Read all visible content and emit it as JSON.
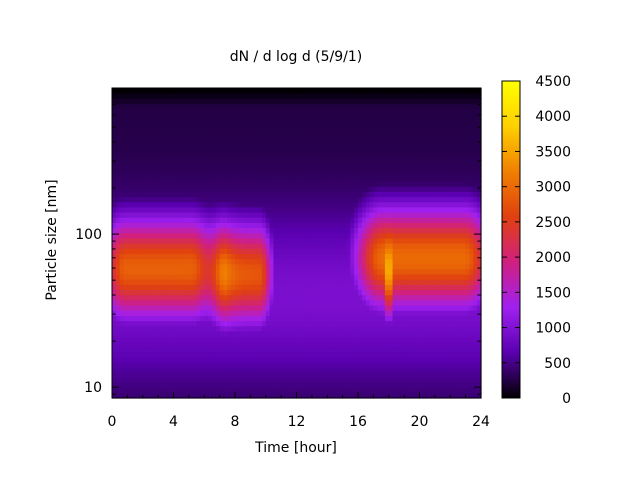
{
  "chart_data": {
    "type": "heatmap",
    "title": "dN / d log d (5/9/1)",
    "xlabel": "Time [hour]",
    "ylabel": "Particle size [nm]",
    "xlim": [
      0,
      24
    ],
    "ylim": [
      8.5,
      900
    ],
    "yscale": "log",
    "x_ticks": [
      0,
      4,
      8,
      12,
      16,
      20,
      24
    ],
    "y_ticks": [
      10,
      100
    ],
    "colorbar": {
      "min": 0,
      "max": 4500,
      "ticks": [
        0,
        500,
        1000,
        1500,
        2000,
        2500,
        3000,
        3500,
        4000,
        4500
      ],
      "colormap": [
        "#000000",
        "#5a00b0",
        "#a020f0",
        "#d02080",
        "#e04010",
        "#f08000",
        "#ffd000",
        "#ffff00"
      ]
    },
    "modes": [
      {
        "time_start": 0,
        "time_end": 6,
        "peak_size_nm": 60,
        "peak_value": 2900
      },
      {
        "time_start": 7,
        "time_end": 10,
        "peak_size_nm": 55,
        "peak_value": 2800
      },
      {
        "time_start": 16.5,
        "time_end": 24,
        "peak_size_nm": 70,
        "peak_value": 3000
      },
      {
        "time_start": 17.9,
        "time_end": 18.1,
        "peak_size_nm": 45,
        "peak_value": 4300
      }
    ]
  }
}
